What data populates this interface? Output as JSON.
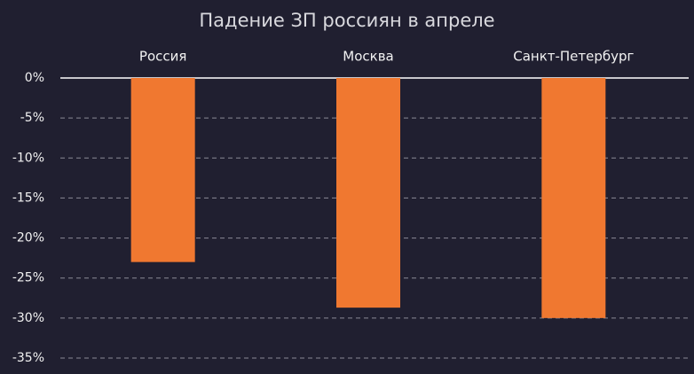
{
  "chart_data": {
    "type": "bar",
    "title": "Падение ЗП россиян в апреле",
    "categories": [
      "Россия",
      "Москва",
      "Санкт-Петербург"
    ],
    "values": [
      -23,
      -28.7,
      -30
    ],
    "color": "#f07830",
    "ylim": [
      -35,
      0
    ],
    "yticks": [
      {
        "value": 0,
        "label": "0%"
      },
      {
        "value": -5,
        "label": "-5%"
      },
      {
        "value": -10,
        "label": "-10%"
      },
      {
        "value": -15,
        "label": "-15%"
      },
      {
        "value": -20,
        "label": "-20%"
      },
      {
        "value": -25,
        "label": "-25%"
      },
      {
        "value": -30,
        "label": "-30%"
      },
      {
        "value": -35,
        "label": "-35%"
      }
    ],
    "grid": true
  }
}
